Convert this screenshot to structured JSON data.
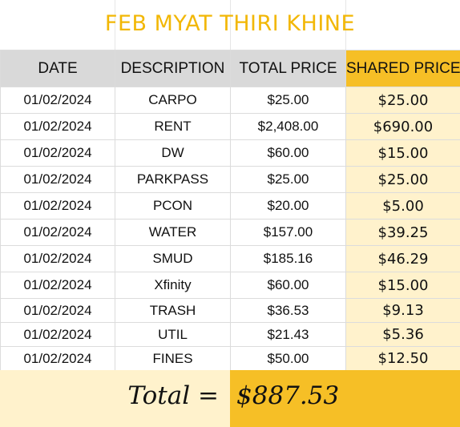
{
  "title": "FEB MYAT THIRI KHINE",
  "columns": [
    "DATE",
    "DESCRIPTION",
    "TOTAL PRICE",
    "SHARED PRICE"
  ],
  "rows": [
    {
      "date": "01/02/2024",
      "description": "CARPO",
      "total": "$25.00",
      "shared": "$25.00"
    },
    {
      "date": "01/02/2024",
      "description": "RENT",
      "total": "$2,408.00",
      "shared": "$690.00"
    },
    {
      "date": "01/02/2024",
      "description": "DW",
      "total": "$60.00",
      "shared": "$15.00"
    },
    {
      "date": "01/02/2024",
      "description": "PARKPASS",
      "total": "$25.00",
      "shared": "$25.00"
    },
    {
      "date": "01/02/2024",
      "description": "PCON",
      "total": "$20.00",
      "shared": "$5.00"
    },
    {
      "date": "01/02/2024",
      "description": "WATER",
      "total": "$157.00",
      "shared": "$39.25"
    },
    {
      "date": "01/02/2024",
      "description": "SMUD",
      "total": "$185.16",
      "shared": "$46.29"
    },
    {
      "date": "01/02/2024",
      "description": "Xfinity",
      "total": "$60.00",
      "shared": "$15.00"
    },
    {
      "date": "01/02/2024",
      "description": "TRASH",
      "total": "$36.53",
      "shared": "$9.13"
    },
    {
      "date": "01/02/2024",
      "description": "UTIL",
      "total": "$21.43",
      "shared": "$5.36"
    },
    {
      "date": "01/02/2024",
      "description": "FINES",
      "total": "$50.00",
      "shared": "$12.50"
    }
  ],
  "total": {
    "label": "Total =",
    "value": "$887.53"
  },
  "colors": {
    "title": "#f2b705",
    "header_gray": "#d9d9d9",
    "header_shared": "#f6bf26",
    "shared_cell": "#fff2cc",
    "total_value_bg": "#f6bf26"
  }
}
